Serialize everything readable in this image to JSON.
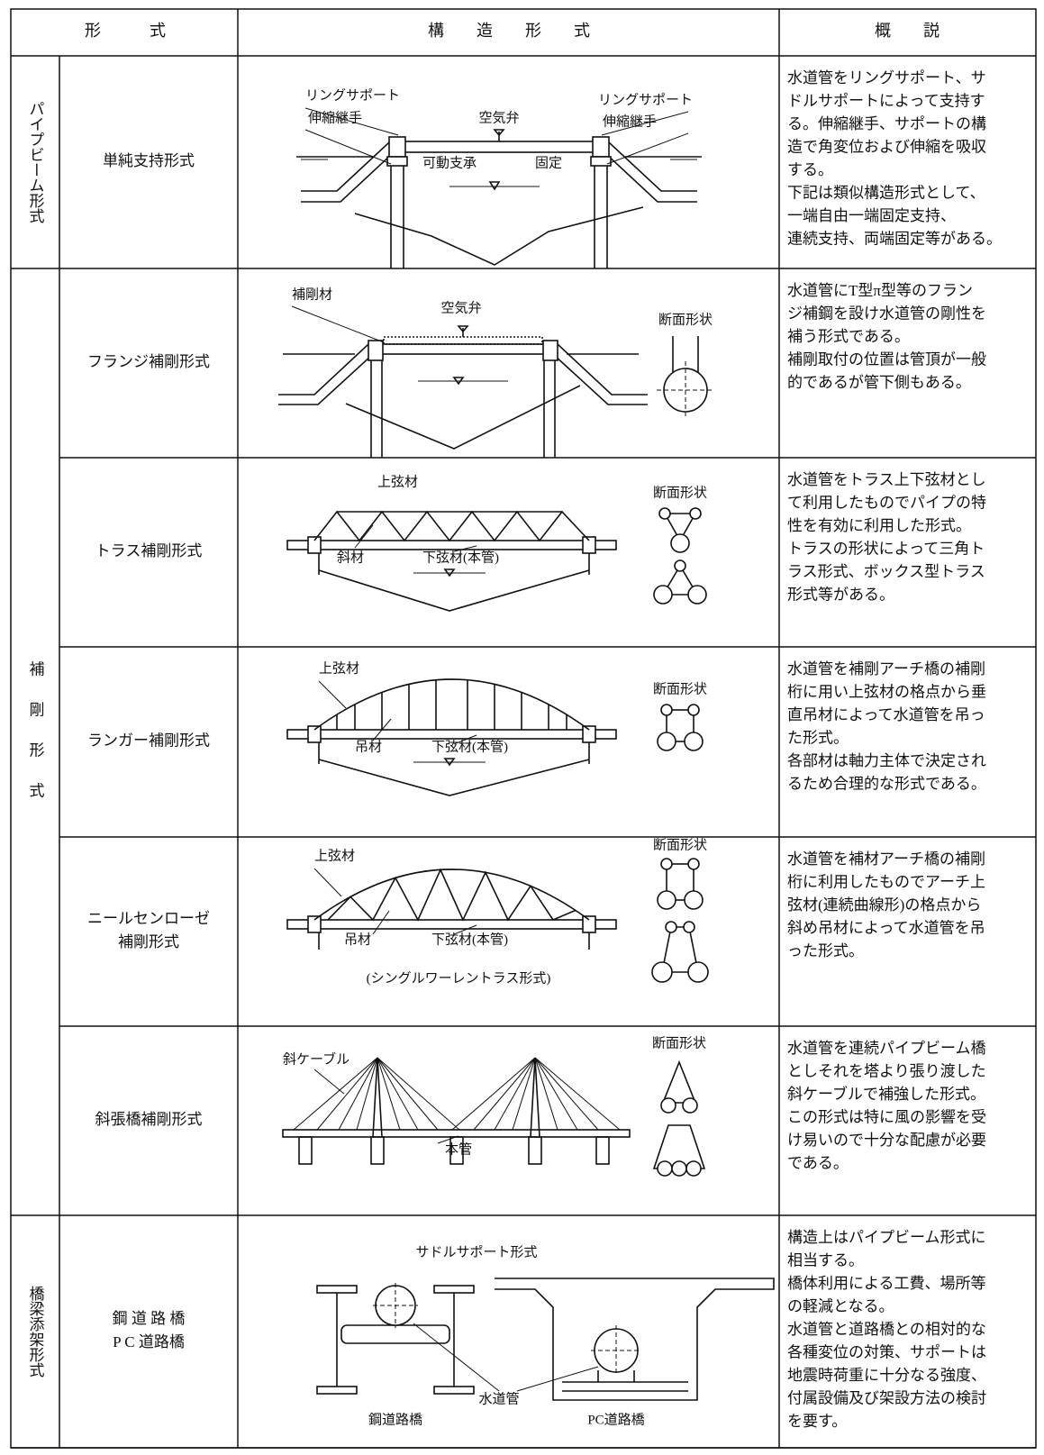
{
  "header": {
    "form": "形　　　式",
    "structure": "構　　造　　形　　式",
    "description": "概　　説"
  },
  "groups": [
    {
      "label": "パイプビーム形式",
      "rows": [
        {
          "name": [
            "単純支持形式"
          ],
          "labels": [
            "リングサポート",
            "伸縮継手",
            "空気弁",
            "リングサポート",
            "伸縮継手",
            "可動支承",
            "固定"
          ],
          "description": [
            "水道管をリングサポート、サ",
            "ドルサポートによって支持す",
            "る。伸縮継手、サポートの構",
            "造で角変位および伸縮を吸収",
            "する。",
            "下記は類似構造形式として、",
            "一端自由一端固定支持、",
            "連続支持、両端固定等がある。"
          ]
        }
      ]
    },
    {
      "label": "補剛形式",
      "rows": [
        {
          "name": [
            "フランジ補剛形式"
          ],
          "labels": [
            "補剛材",
            "空気弁",
            "断面形状"
          ],
          "description": [
            "水道管にT型π型等のフラン",
            "ジ補鋼を設け水道管の剛性を",
            "補う形式である。",
            "補剛取付の位置は管頂が一般",
            "的であるが管下側もある。"
          ]
        },
        {
          "name": [
            "トラス補剛形式"
          ],
          "labels": [
            "上弦材",
            "斜材",
            "下弦材(本管)",
            "断面形状"
          ],
          "description": [
            "水道管をトラス上下弦材とし",
            "て利用したものでパイプの特",
            "性を有効に利用した形式。",
            "トラスの形状によって三角ト",
            "ラス形式、ボックス型トラス",
            "形式等がある。"
          ]
        },
        {
          "name": [
            "ランガー補剛形式"
          ],
          "labels": [
            "上弦材",
            "吊材",
            "下弦材(本管)",
            "断面形状"
          ],
          "description": [
            "水道管を補剛アーチ橋の補剛",
            "桁に用い上弦材の格点から垂",
            "直吊材によって水道管を吊っ",
            "た形式。",
            "各部材は軸力主体で決定され",
            "るため合理的な形式である。"
          ]
        },
        {
          "name": [
            "ニールセンローゼ",
            "補剛形式"
          ],
          "labels": [
            "上弦材",
            "吊材",
            "下弦材(本管)",
            "(シングルワーレントラス形式)",
            "断面形状"
          ],
          "description": [
            "水道管を補材アーチ橋の補剛",
            "桁に利用したものでアーチ上",
            "弦材(連続曲線形)の格点から",
            "斜め吊材によって水道管を吊",
            "った形式。"
          ]
        },
        {
          "name": [
            "斜張橋補剛形式"
          ],
          "labels": [
            "斜ケーブル",
            "本管",
            "断面形状"
          ],
          "description": [
            "水道管を連続パイプビーム橋",
            "としそれを塔より張り渡した",
            "斜ケーブルで補強した形式。",
            "この形式は特に風の影響を受",
            "け易いので十分な配慮が必要",
            "である。"
          ]
        }
      ]
    },
    {
      "label": "橋梁添架形式",
      "rows": [
        {
          "name": [
            "鋼 道 路 橋",
            "P C 道路橋"
          ],
          "labels": [
            "サドルサポート形式",
            "鋼道路橋",
            "PC道路橋",
            "水道管"
          ],
          "description": [
            "構造上はパイプビーム形式に",
            "相当する。",
            "橋体利用による工費、場所等",
            "の軽減となる。",
            "水道管と道路橋との相対的な",
            "各種変位の対策、サポートは",
            "地震時荷重に十分なる強度、",
            "付属設備及び架設方法の検討",
            "を要す。"
          ]
        }
      ]
    }
  ]
}
